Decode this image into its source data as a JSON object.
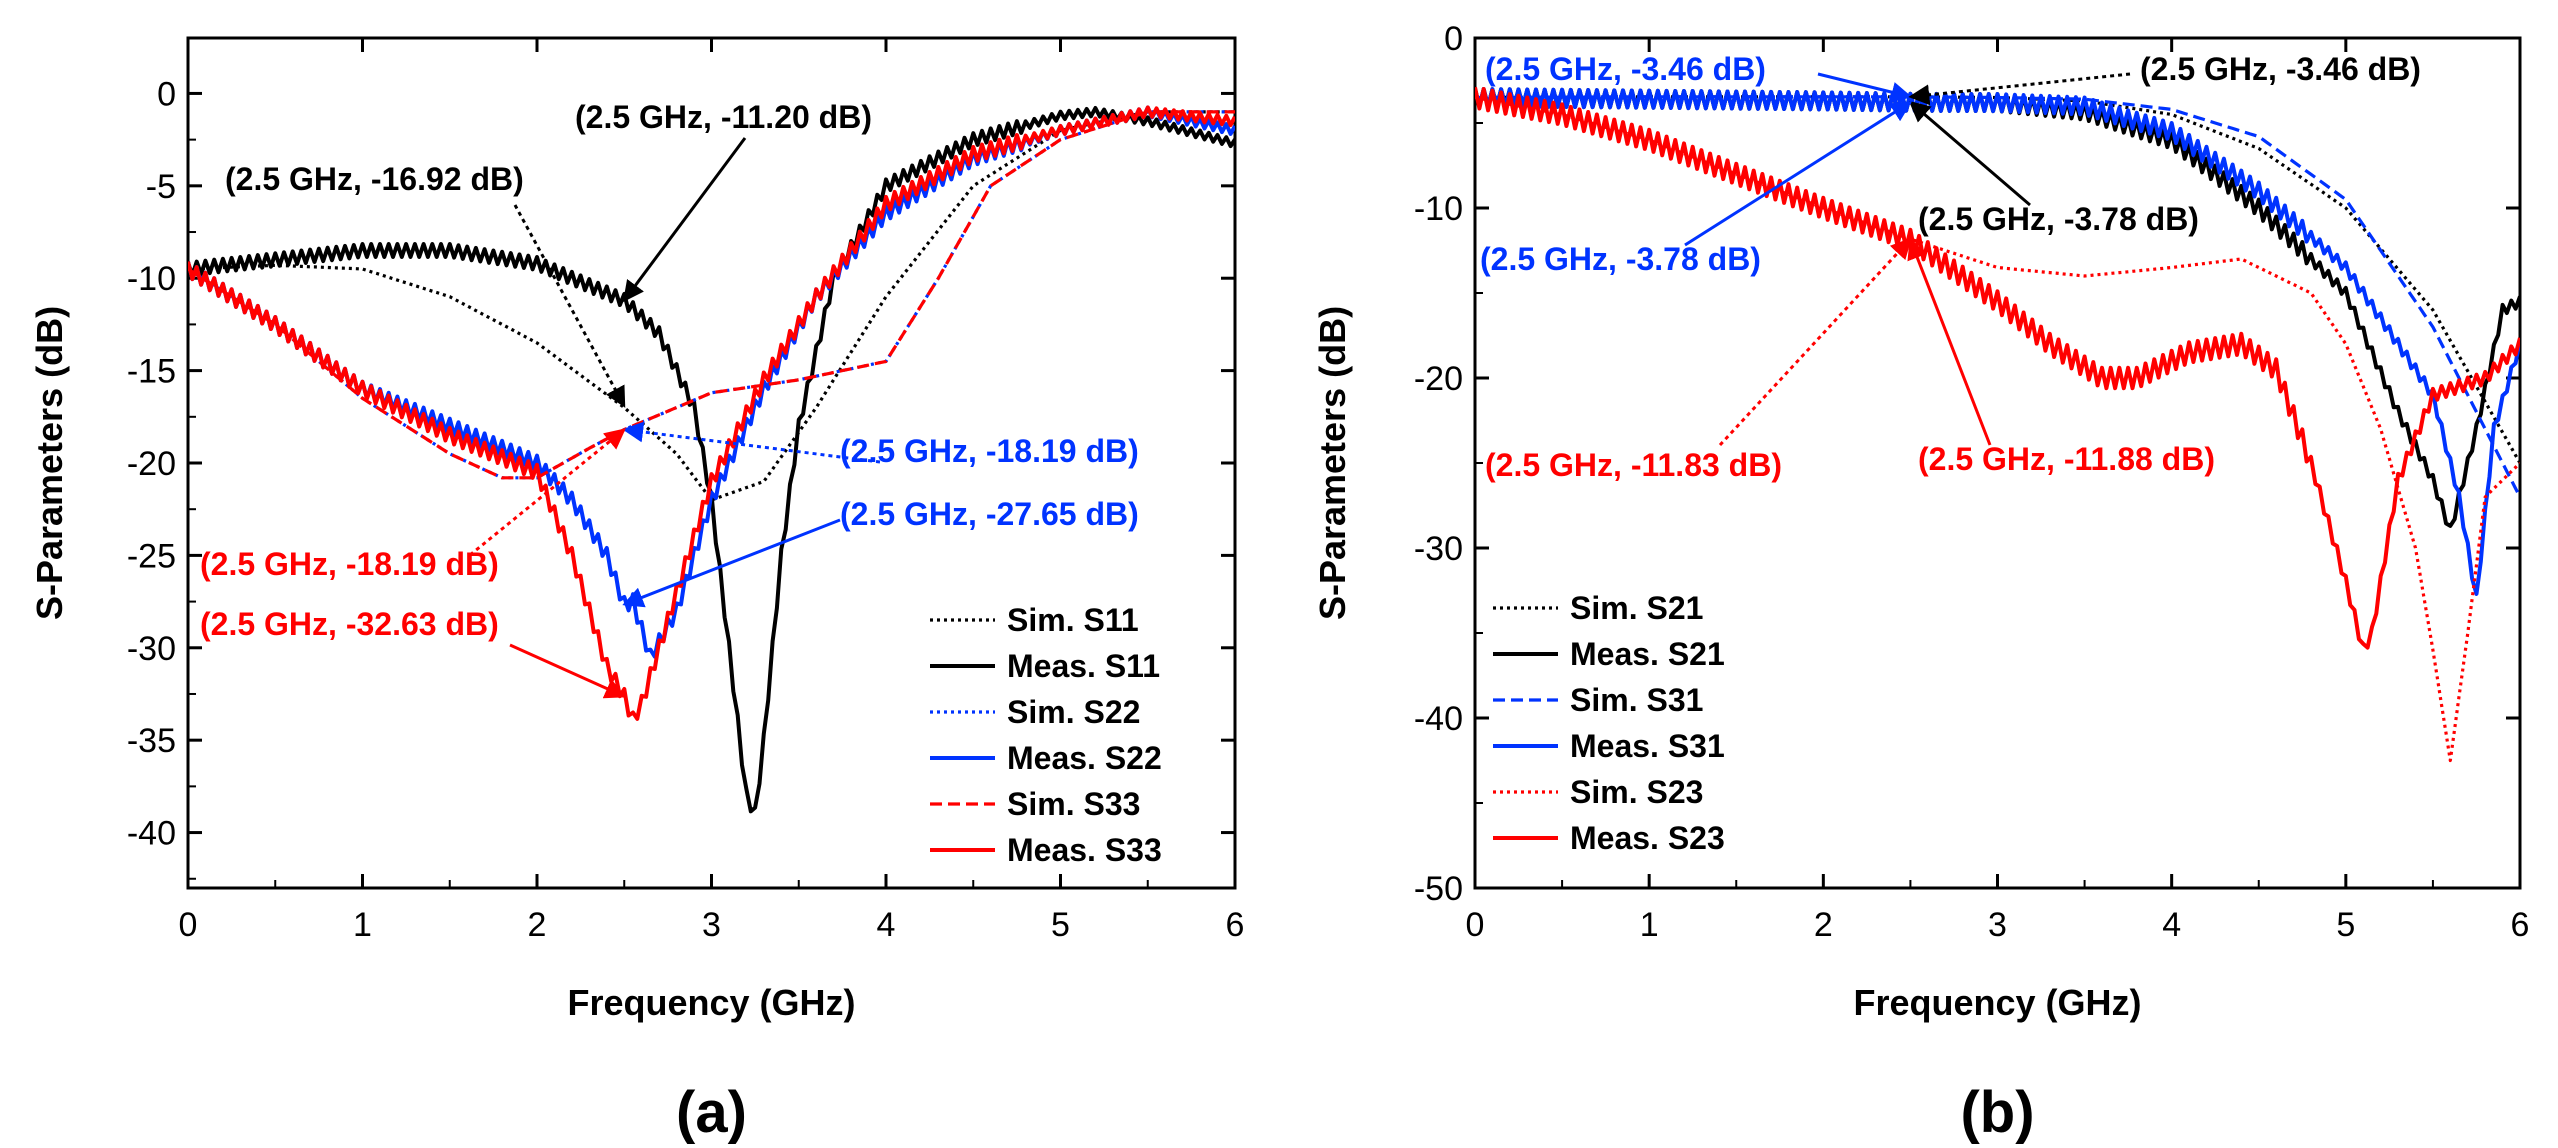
{
  "chart_data": [
    {
      "type": "line",
      "panel_label": "(a)",
      "xlabel": "Frequency (GHz)",
      "ylabel": "S-Parameters (dB)",
      "xlim": [
        0,
        6
      ],
      "ylim": [
        -43,
        3
      ],
      "x_ticks": [
        "0",
        "1",
        "2",
        "3",
        "4",
        "5",
        "6"
      ],
      "y_ticks": [
        "0",
        "-5",
        "-10",
        "-15",
        "-20",
        "-25",
        "-30",
        "-35",
        "-40"
      ],
      "grid": false,
      "legend_position": "bottom-right",
      "series": [
        {
          "name": "Sim. S11",
          "color": "#000000",
          "dash": "dotted",
          "x": [
            0,
            0.5,
            1,
            1.5,
            2,
            2.5,
            2.8,
            3,
            3.3,
            3.6,
            4,
            4.5,
            5,
            5.5,
            6
          ],
          "y": [
            -9.5,
            -9.3,
            -9.5,
            -11,
            -13.5,
            -17,
            -19.5,
            -22,
            -21,
            -17,
            -11,
            -5,
            -2,
            -1,
            -1
          ]
        },
        {
          "name": "Meas. S11",
          "color": "#000000",
          "dash": "solid",
          "x": [
            0,
            0.5,
            1,
            1.5,
            2,
            2.5,
            2.7,
            2.9,
            3.0,
            3.1,
            3.2,
            3.25,
            3.3,
            3.4,
            3.5,
            3.7,
            4,
            4.5,
            5,
            5.2,
            5.5,
            6
          ],
          "y": [
            -9.5,
            -9,
            -8.5,
            -8.5,
            -9.2,
            -11.2,
            -13,
            -17,
            -22,
            -30,
            -38,
            -39,
            -35,
            -25,
            -18,
            -10,
            -5,
            -2.5,
            -1.2,
            -1,
            -1.5,
            -2.7
          ],
          "wiggle": 0.35
        },
        {
          "name": "Sim. S22",
          "color": "#0033ff",
          "dash": "dotted",
          "x": [
            0,
            0.5,
            1,
            1.5,
            1.8,
            2,
            2.3,
            2.5,
            3,
            3.5,
            4,
            4.3,
            4.6,
            5,
            5.5,
            6
          ],
          "y": [
            -9.5,
            -12.5,
            -16.5,
            -19.5,
            -20.8,
            -20.8,
            -19.2,
            -18.19,
            -16.2,
            -15.5,
            -14.5,
            -10,
            -5,
            -2.5,
            -1,
            -1
          ]
        },
        {
          "name": "Meas. S22",
          "color": "#0033ff",
          "dash": "solid",
          "x": [
            0,
            0.5,
            1,
            1.5,
            2,
            2.2,
            2.4,
            2.5,
            2.55,
            2.65,
            2.8,
            3,
            3.3,
            3.6,
            4,
            4.5,
            5,
            5.5,
            6
          ],
          "y": [
            -9.5,
            -12.5,
            -16,
            -18,
            -20,
            -22,
            -25,
            -27.65,
            -27.5,
            -30.5,
            -28,
            -22,
            -16,
            -11,
            -6.5,
            -3.5,
            -2,
            -1,
            -2
          ],
          "wiggle": 0.4
        },
        {
          "name": "Sim. S33",
          "color": "#ff0000",
          "dash": "dashed",
          "x": [
            0,
            0.5,
            1,
            1.5,
            1.8,
            2,
            2.3,
            2.5,
            3,
            3.5,
            4,
            4.3,
            4.6,
            5,
            5.5,
            6
          ],
          "y": [
            -9.5,
            -12.5,
            -16.5,
            -19.5,
            -20.8,
            -20.8,
            -19.2,
            -18.19,
            -16.2,
            -15.5,
            -14.5,
            -10,
            -5,
            -2.5,
            -1,
            -1
          ]
        },
        {
          "name": "Meas. S33",
          "color": "#ff0000",
          "dash": "solid",
          "x": [
            0,
            0.5,
            1,
            1.5,
            2,
            2.2,
            2.4,
            2.5,
            2.55,
            2.6,
            2.7,
            2.8,
            3,
            3.3,
            3.6,
            4,
            4.5,
            5,
            5.5,
            6
          ],
          "y": [
            -9.5,
            -12.5,
            -16,
            -18.5,
            -20.5,
            -25,
            -31,
            -32.63,
            -33.9,
            -33,
            -30,
            -27,
            -21,
            -15.5,
            -11,
            -6,
            -3.3,
            -2,
            -1,
            -1.5
          ],
          "wiggle": 0.4
        }
      ],
      "annotations": [
        {
          "text": "(2.5 GHz, -11.20 dB)",
          "color": "#000000",
          "x": 2.5,
          "y": -11.2
        },
        {
          "text": "(2.5 GHz, -16.92 dB)",
          "color": "#000000",
          "x": 2.5,
          "y": -16.92
        },
        {
          "text": "(2.5 GHz, -18.19 dB)",
          "color": "#0033ff",
          "x": 2.5,
          "y": -18.19
        },
        {
          "text": "(2.5 GHz, -27.65 dB)",
          "color": "#0033ff",
          "x": 2.5,
          "y": -27.65
        },
        {
          "text": "(2.5 GHz, -18.19 dB)",
          "color": "#ff0000",
          "x": 2.5,
          "y": -18.19
        },
        {
          "text": "(2.5 GHz, -32.63 dB)",
          "color": "#ff0000",
          "x": 2.5,
          "y": -32.63
        }
      ]
    },
    {
      "type": "line",
      "panel_label": "(b)",
      "xlabel": "Frequency (GHz)",
      "ylabel": "S-Parameters (dB)",
      "xlim": [
        0,
        6
      ],
      "ylim": [
        -50,
        0
      ],
      "x_ticks": [
        "0",
        "1",
        "2",
        "3",
        "4",
        "5",
        "6"
      ],
      "y_ticks": [
        "0",
        "-10",
        "-20",
        "-30",
        "-40",
        "-50"
      ],
      "grid": false,
      "legend_position": "bottom-left",
      "series": [
        {
          "name": "Sim. S21",
          "color": "#000000",
          "dash": "dotted",
          "x": [
            0,
            1,
            2,
            2.5,
            3,
            3.5,
            4,
            4.5,
            5,
            5.5,
            6
          ],
          "y": [
            -3.5,
            -3.46,
            -3.46,
            -3.46,
            -3.5,
            -3.7,
            -4.5,
            -6.5,
            -10,
            -16,
            -25
          ]
        },
        {
          "name": "Meas. S21",
          "color": "#000000",
          "dash": "solid",
          "x": [
            0,
            1,
            2,
            2.5,
            3,
            3.5,
            4,
            4.5,
            5,
            5.3,
            5.5,
            5.6,
            5.75,
            5.9,
            6
          ],
          "y": [
            -3.5,
            -3.6,
            -3.7,
            -3.78,
            -3.8,
            -4.3,
            -6,
            -10,
            -15,
            -22,
            -26,
            -29,
            -23,
            -16,
            -15.5
          ],
          "wiggle": 0.5
        },
        {
          "name": "Sim. S31",
          "color": "#0033ff",
          "dash": "dashed",
          "x": [
            0,
            1,
            2,
            2.5,
            3,
            3.5,
            4,
            4.5,
            5,
            5.5,
            5.8,
            6
          ],
          "y": [
            -3.5,
            -3.46,
            -3.46,
            -3.46,
            -3.5,
            -3.6,
            -4.2,
            -5.8,
            -9.5,
            -17,
            -23,
            -27
          ]
        },
        {
          "name": "Meas. S31",
          "color": "#0033ff",
          "dash": "solid",
          "x": [
            0,
            1,
            2,
            2.5,
            3,
            3.5,
            4,
            4.5,
            5,
            5.3,
            5.5,
            5.65,
            5.75,
            5.85,
            6
          ],
          "y": [
            -3.5,
            -3.6,
            -3.7,
            -3.78,
            -3.8,
            -4,
            -5.5,
            -9,
            -13.5,
            -18,
            -21,
            -27,
            -33,
            -23,
            -18
          ],
          "wiggle": 0.5
        },
        {
          "name": "Sim. S23",
          "color": "#ff0000",
          "dash": "dotted",
          "x": [
            0,
            0.5,
            1,
            1.5,
            2,
            2.5,
            3,
            3.5,
            4,
            4.4,
            4.8,
            5,
            5.2,
            5.4,
            5.5,
            5.6,
            5.7,
            5.8,
            6
          ],
          "y": [
            -3.5,
            -4.5,
            -6,
            -8,
            -10,
            -11.83,
            -13.5,
            -14,
            -13.5,
            -13,
            -15,
            -18,
            -23,
            -30,
            -36,
            -42.5,
            -35,
            -27,
            -25
          ]
        },
        {
          "name": "Meas. S23",
          "color": "#ff0000",
          "dash": "solid",
          "x": [
            0,
            0.5,
            1,
            1.5,
            2,
            2.5,
            3,
            3.3,
            3.6,
            3.8,
            4.1,
            4.4,
            4.6,
            4.8,
            5.0,
            5.1,
            5.15,
            5.3,
            5.5,
            5.8,
            6
          ],
          "y": [
            -3.5,
            -4.5,
            -6,
            -8,
            -10,
            -11.88,
            -15.5,
            -18,
            -20,
            -20,
            -18.5,
            -18,
            -19.5,
            -25,
            -32,
            -36,
            -35,
            -26,
            -21,
            -20,
            -18
          ],
          "wiggle": 0.6
        }
      ],
      "annotations": [
        {
          "text": "(2.5 GHz, -3.46 dB)",
          "color": "#0033ff",
          "x": 2.5,
          "y": -3.46
        },
        {
          "text": "(2.5 GHz, -3.46 dB)",
          "color": "#000000",
          "x": 2.5,
          "y": -3.46
        },
        {
          "text": "(2.5 GHz, -3.78 dB)",
          "color": "#000000",
          "x": 2.5,
          "y": -3.78
        },
        {
          "text": "(2.5 GHz, -3.78 dB)",
          "color": "#0033ff",
          "x": 2.5,
          "y": -3.78
        },
        {
          "text": "(2.5 GHz, -11.83 dB)",
          "color": "#ff0000",
          "x": 2.5,
          "y": -11.83
        },
        {
          "text": "(2.5 GHz, -11.88 dB)",
          "color": "#ff0000",
          "x": 2.5,
          "y": -11.88
        }
      ]
    }
  ]
}
